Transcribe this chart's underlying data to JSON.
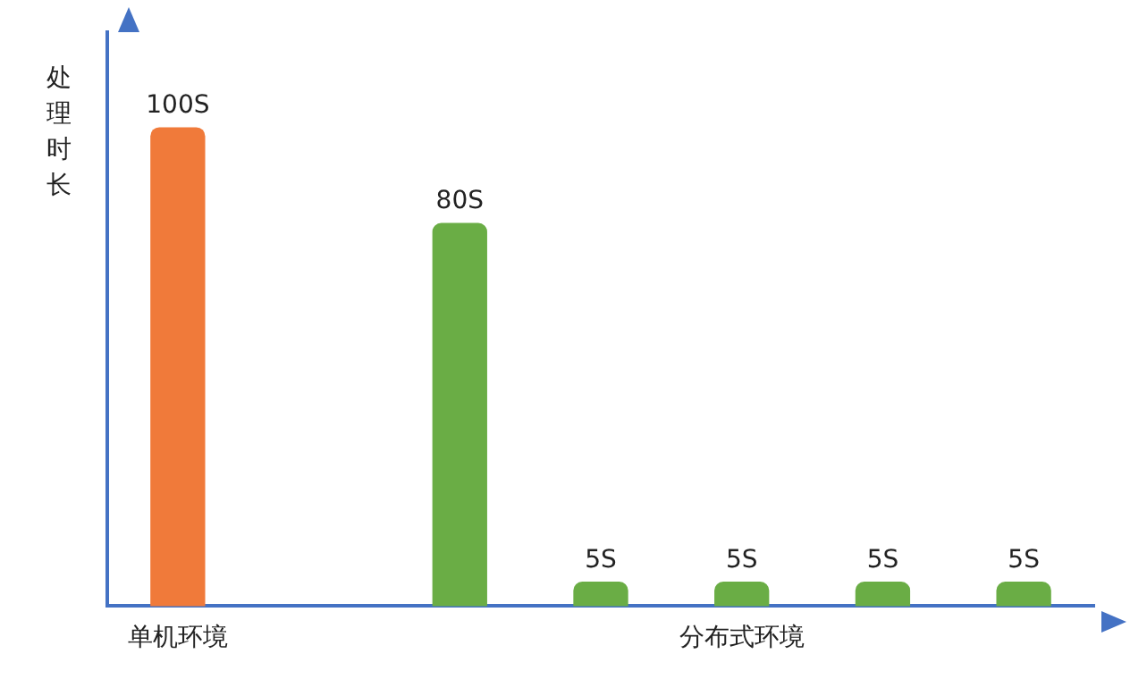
{
  "chart_data": {
    "type": "bar",
    "ylabel": "处理时长",
    "categories": [
      "单机环境",
      null,
      null,
      null,
      "分布式环境",
      null,
      null
    ],
    "values": [
      100,
      null,
      80,
      5,
      5,
      5,
      5
    ],
    "colors": [
      "#f07a3a",
      null,
      "#6aad45",
      "#6aad45",
      "#6aad45",
      "#6aad45",
      "#6aad45"
    ],
    "value_labels": [
      "100S",
      null,
      "80S",
      "5S",
      "5S",
      "5S",
      "5S"
    ],
    "grid": false,
    "legend": false
  }
}
